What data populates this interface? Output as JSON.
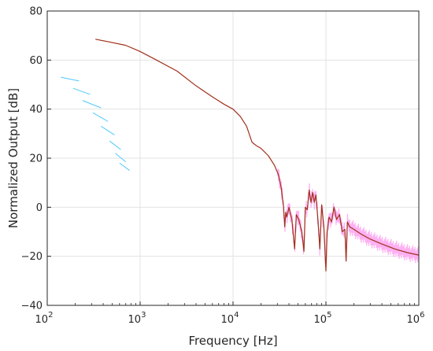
{
  "chart_data": {
    "type": "line",
    "title": "",
    "xlabel": "Frequency [Hz]",
    "ylabel": "Normalized Output [dB]",
    "xscale": "log",
    "xlim": [
      100,
      1000000
    ],
    "ylim": [
      -40,
      80
    ],
    "grid": true,
    "legend": "none",
    "x_ticks": [
      {
        "base": "10",
        "exp": "2",
        "value": 100
      },
      {
        "base": "10",
        "exp": "3",
        "value": 1000
      },
      {
        "base": "10",
        "exp": "4",
        "value": 10000
      },
      {
        "base": "10",
        "exp": "5",
        "value": 100000
      },
      {
        "base": "10",
        "exp": "6",
        "value": 1000000
      }
    ],
    "y_ticks": [
      -40,
      -20,
      0,
      20,
      40,
      60,
      80
    ],
    "series": [
      {
        "color": "#a0301a",
        "style": "solid",
        "x": [
          330,
          450,
          700,
          1000,
          1500,
          2500,
          4000,
          6000,
          8000,
          10000,
          12000,
          14000,
          16000,
          18000,
          20000,
          24000,
          28000,
          31000,
          33000,
          35000,
          36000,
          37000,
          38000,
          40000,
          43000,
          46000,
          48000,
          51000,
          55000,
          58000,
          60000,
          63000,
          66000,
          69000,
          72000,
          75000,
          78000,
          82000,
          86000,
          90000,
          95000,
          100000,
          103000,
          108000,
          115000,
          122000,
          130000,
          140000,
          150000,
          160000,
          165000,
          170000,
          180000,
          200000,
          240000,
          300000,
          400000,
          550000,
          750000,
          1000000
        ],
        "y": [
          68.5,
          67.5,
          66,
          63.5,
          60,
          55.5,
          49.5,
          45,
          42,
          40,
          37,
          33,
          26.5,
          25,
          24,
          21,
          17,
          13,
          8,
          0,
          -8,
          -2,
          -4,
          0,
          -5,
          -17,
          -3,
          -5,
          -10,
          -18,
          0,
          -1,
          7,
          2,
          6,
          2,
          5,
          -5,
          -17,
          1,
          -8,
          -26,
          -10,
          -4,
          -6,
          0,
          -5,
          -3,
          -10,
          -9,
          -22,
          -6,
          -8,
          -9,
          -11,
          -13,
          -15,
          -17,
          -18.5,
          -19.5
        ]
      },
      {
        "color": "#ff9cf0",
        "style": "noise",
        "x": [
          30000,
          50000,
          80000,
          120000,
          200000,
          300000,
          500000,
          800000,
          1000000
        ],
        "y": [
          0,
          0,
          0,
          0,
          0,
          0,
          0,
          0,
          0
        ]
      },
      {
        "color": "#4fc8ff",
        "style": "dashed",
        "segments": [
          {
            "x": [
              140,
              220
            ],
            "y": [
              53,
              51.5
            ]
          },
          {
            "x": [
              190,
              290
            ],
            "y": [
              48.5,
              46
            ]
          },
          {
            "x": [
              240,
              380
            ],
            "y": [
              43.5,
              40.5
            ]
          },
          {
            "x": [
              310,
              450
            ],
            "y": [
              38.5,
              35
            ]
          },
          {
            "x": [
              380,
              530
            ],
            "y": [
              33,
              29.5
            ]
          },
          {
            "x": [
              470,
              620
            ],
            "y": [
              27,
              23.5
            ]
          },
          {
            "x": [
              540,
              700
            ],
            "y": [
              22,
              18.5
            ]
          },
          {
            "x": [
              600,
              770
            ],
            "y": [
              18,
              15
            ]
          }
        ]
      }
    ]
  }
}
